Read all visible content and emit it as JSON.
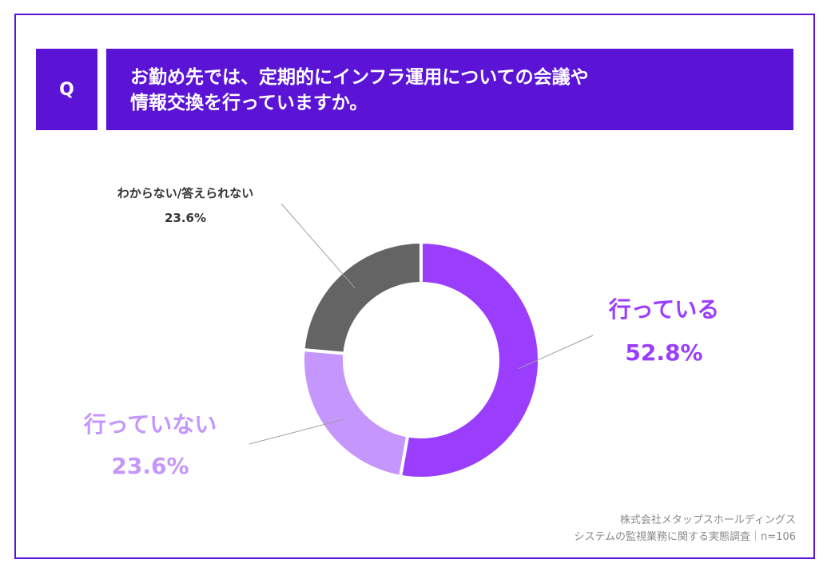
{
  "question": {
    "badge": "Q",
    "line1": "お勤め先では、定期的にインフラ運用についての会議や",
    "line2": "情報交換を行っていますか。"
  },
  "chart_data": {
    "type": "pie",
    "donut": true,
    "categories": [
      "行っている",
      "行っていない",
      "わからない/答えられない"
    ],
    "values": [
      52.8,
      23.6,
      23.6
    ],
    "value_labels": [
      "52.8%",
      "23.6%",
      "23.6%"
    ],
    "colors": [
      "#9b3dfc",
      "#c596fc",
      "#646464"
    ]
  },
  "source": {
    "line1": "株式会社メタップスホールディングス",
    "line2": "システムの監視業務に関する実態調査｜n=106"
  }
}
